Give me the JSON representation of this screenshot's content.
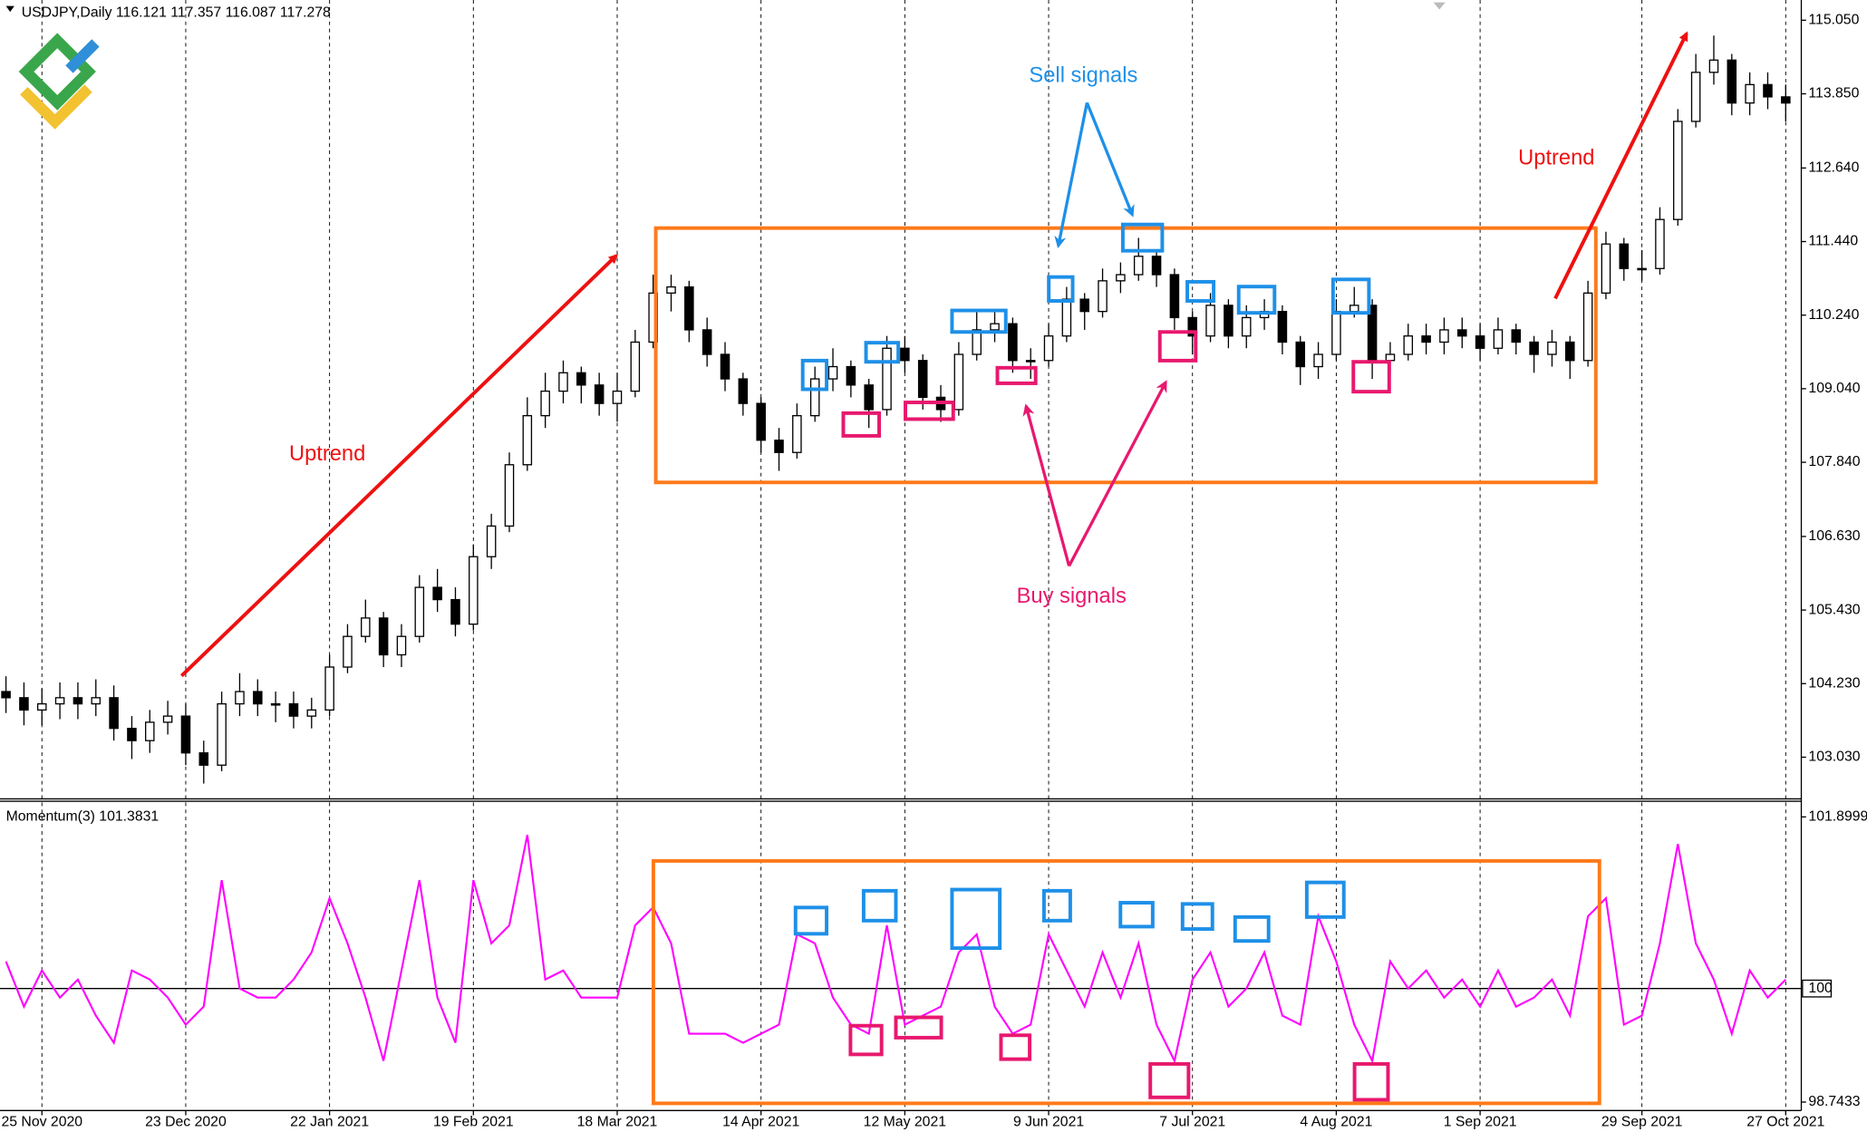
{
  "chart_data": [
    {
      "type": "candlestick",
      "title": "USDJPY,Daily  116.121 117.357 116.087 117.278",
      "annotations": [
        "Uptrend",
        "Sell signals",
        "Buy signals",
        "Uptrend"
      ],
      "open": [
        104.1,
        104.0,
        103.8,
        103.9,
        104.0,
        103.9,
        104.0,
        103.5,
        103.3,
        103.6,
        103.7,
        103.1,
        102.9,
        103.9,
        104.1,
        103.9,
        103.9,
        103.7,
        103.8,
        104.5,
        105.0,
        105.3,
        104.7,
        105.0,
        105.8,
        105.6,
        105.2,
        106.3,
        106.8,
        107.8,
        108.6,
        109.0,
        109.3,
        109.1,
        108.8,
        109.0,
        109.8,
        110.6,
        110.7,
        110.0,
        109.6,
        109.2,
        108.8,
        108.2,
        108.0,
        108.6,
        109.2,
        109.4,
        109.1,
        108.7,
        109.7,
        109.5,
        108.9,
        108.7,
        109.6,
        110.0,
        110.1,
        109.5,
        109.5,
        109.9,
        110.5,
        110.3,
        110.8,
        110.9,
        111.2,
        110.9,
        110.2,
        109.9,
        110.4,
        109.9,
        110.2,
        110.3,
        109.8,
        109.4,
        109.6,
        110.3,
        110.4,
        109.5,
        109.6,
        109.9,
        109.8,
        110.0,
        109.9,
        109.7,
        110.0,
        109.8,
        109.6,
        109.8,
        109.5,
        110.6,
        111.4,
        111.0,
        111.0,
        111.8,
        113.4,
        114.2,
        114.4,
        113.7,
        114.0,
        113.8
      ],
      "high": [
        104.35,
        104.25,
        104.15,
        104.25,
        104.25,
        104.3,
        104.2,
        103.7,
        103.8,
        103.95,
        103.9,
        103.3,
        104.1,
        104.4,
        104.3,
        104.1,
        104.1,
        104.0,
        104.7,
        105.2,
        105.6,
        105.4,
        105.2,
        106.0,
        106.1,
        105.8,
        106.5,
        107.0,
        108.0,
        108.9,
        109.3,
        109.5,
        109.4,
        109.3,
        109.3,
        110.0,
        110.9,
        110.9,
        110.8,
        110.2,
        109.8,
        109.3,
        108.9,
        108.4,
        108.8,
        109.4,
        109.7,
        109.5,
        109.2,
        109.9,
        109.9,
        109.6,
        109.1,
        109.8,
        110.3,
        110.3,
        110.2,
        109.7,
        110.1,
        110.7,
        110.6,
        111.0,
        111.1,
        111.5,
        111.3,
        111.0,
        110.3,
        110.6,
        110.5,
        110.4,
        110.5,
        110.4,
        109.9,
        109.8,
        110.5,
        110.7,
        110.5,
        109.8,
        110.1,
        110.1,
        110.2,
        110.2,
        110.1,
        110.2,
        110.1,
        109.9,
        110.0,
        109.9,
        110.8,
        111.6,
        111.5,
        111.3,
        112.0,
        113.6,
        114.5,
        114.8,
        114.5,
        114.2,
        114.2,
        114.0
      ],
      "low": [
        103.75,
        103.55,
        103.55,
        103.65,
        103.65,
        103.7,
        103.3,
        103.0,
        103.1,
        103.4,
        102.9,
        102.6,
        102.8,
        103.7,
        103.7,
        103.6,
        103.5,
        103.5,
        103.7,
        104.4,
        104.9,
        104.5,
        104.5,
        104.9,
        105.4,
        105.0,
        105.1,
        106.1,
        106.7,
        107.7,
        108.4,
        108.8,
        108.8,
        108.6,
        108.5,
        108.9,
        109.7,
        110.3,
        109.8,
        109.4,
        109.0,
        108.6,
        108.0,
        107.7,
        107.9,
        108.5,
        109.0,
        108.9,
        108.4,
        108.6,
        109.3,
        108.7,
        108.5,
        108.6,
        109.5,
        109.8,
        109.3,
        109.2,
        109.4,
        109.8,
        110.0,
        110.2,
        110.6,
        110.8,
        110.7,
        110.0,
        109.6,
        109.8,
        109.7,
        109.7,
        110.0,
        109.6,
        109.1,
        109.2,
        109.5,
        110.2,
        109.2,
        109.3,
        109.5,
        109.6,
        109.6,
        109.7,
        109.5,
        109.6,
        109.6,
        109.3,
        109.4,
        109.2,
        109.4,
        110.5,
        110.8,
        110.8,
        110.9,
        111.7,
        113.3,
        114.0,
        113.5,
        113.5,
        113.6,
        113.4
      ],
      "close": [
        104.0,
        103.8,
        103.9,
        104.0,
        103.9,
        104.0,
        103.5,
        103.3,
        103.6,
        103.7,
        103.1,
        102.9,
        103.9,
        104.1,
        103.9,
        103.9,
        103.7,
        103.8,
        104.5,
        105.0,
        105.3,
        104.7,
        105.0,
        105.8,
        105.6,
        105.2,
        106.3,
        106.8,
        107.8,
        108.6,
        109.0,
        109.3,
        109.1,
        108.8,
        109.0,
        109.8,
        110.6,
        110.7,
        110.0,
        109.6,
        109.2,
        108.8,
        108.2,
        108.0,
        108.6,
        109.2,
        109.4,
        109.1,
        108.7,
        109.7,
        109.5,
        108.9,
        108.7,
        109.6,
        110.0,
        110.1,
        109.5,
        109.5,
        109.9,
        110.5,
        110.3,
        110.8,
        110.9,
        111.2,
        110.9,
        110.2,
        109.9,
        110.4,
        109.9,
        110.2,
        110.3,
        109.8,
        109.4,
        109.6,
        110.3,
        110.4,
        109.5,
        109.6,
        109.9,
        109.8,
        110.0,
        109.9,
        109.7,
        110.0,
        109.8,
        109.6,
        109.8,
        109.5,
        110.6,
        111.4,
        111.0,
        111.0,
        111.8,
        113.4,
        114.2,
        114.4,
        113.7,
        114.0,
        113.8,
        113.7
      ],
      "ylim": [
        102.37,
        115.38
      ],
      "yticks": [
        {
          "value": 115.05,
          "label": "115.050"
        },
        {
          "value": 113.85,
          "label": "113.850"
        },
        {
          "value": 112.64,
          "label": "112.640"
        },
        {
          "value": 111.44,
          "label": "111.440"
        },
        {
          "value": 110.24,
          "label": "110.240"
        },
        {
          "value": 109.04,
          "label": "109.040"
        },
        {
          "value": 107.84,
          "label": "107.840"
        },
        {
          "value": 106.63,
          "label": "106.630"
        },
        {
          "value": 105.43,
          "label": "105.430"
        },
        {
          "value": 104.23,
          "label": "104.230"
        },
        {
          "value": 103.03,
          "label": "103.030"
        }
      ]
    },
    {
      "type": "line",
      "title": "Momentum(3) 101.3831",
      "color": "#ff00ff",
      "reference_line": 100,
      "categories": [
        null,
        null,
        "25 Nov 2020",
        null,
        null,
        null,
        null,
        null,
        null,
        null,
        "23 Dec 2020",
        null,
        null,
        null,
        null,
        null,
        null,
        null,
        "22 Jan 2021",
        null,
        null,
        null,
        null,
        null,
        null,
        null,
        "19 Feb 2021",
        null,
        null,
        null,
        null,
        null,
        null,
        null,
        "18 Mar 2021",
        null,
        null,
        null,
        null,
        null,
        null,
        null,
        "14 Apr 2021",
        null,
        null,
        null,
        null,
        null,
        null,
        null,
        "12 May 2021",
        null,
        null,
        null,
        null,
        null,
        null,
        null,
        "9 Jun 2021",
        null,
        null,
        null,
        null,
        null,
        null,
        null,
        "7 Jul 2021",
        null,
        null,
        null,
        null,
        null,
        null,
        null,
        "4 Aug 2021",
        null,
        null,
        null,
        null,
        null,
        null,
        null,
        "1 Sep 2021",
        null,
        null,
        null,
        null,
        null,
        null,
        null,
        null,
        "29 Sep 2021",
        null,
        null,
        null,
        null,
        null,
        null,
        null,
        "27 Oct 2021"
      ],
      "values": [
        100.3,
        99.8,
        100.2,
        99.9,
        100.1,
        99.7,
        99.4,
        100.2,
        100.1,
        99.9,
        99.6,
        99.8,
        101.2,
        100.0,
        99.9,
        99.9,
        100.1,
        100.4,
        101.0,
        100.5,
        99.9,
        99.2,
        100.2,
        101.2,
        99.9,
        99.4,
        101.2,
        100.5,
        100.7,
        101.7,
        100.1,
        100.2,
        99.9,
        99.9,
        99.9,
        100.7,
        100.9,
        100.5,
        99.5,
        99.5,
        99.5,
        99.4,
        99.5,
        99.6,
        100.6,
        100.5,
        99.9,
        99.6,
        99.5,
        100.7,
        99.6,
        99.7,
        99.8,
        100.4,
        100.6,
        99.8,
        99.5,
        99.6,
        100.6,
        100.2,
        99.8,
        100.4,
        99.9,
        100.5,
        99.6,
        99.2,
        100.1,
        100.4,
        99.8,
        100.0,
        100.4,
        99.7,
        99.6,
        100.8,
        100.3,
        99.6,
        99.2,
        100.3,
        100.0,
        100.2,
        99.9,
        100.1,
        99.8,
        100.2,
        99.8,
        99.9,
        100.1,
        99.7,
        100.8,
        101.0,
        99.6,
        99.7,
        100.5,
        101.6,
        100.5,
        100.1,
        99.5,
        100.2,
        99.9,
        100.1
      ],
      "ylim": [
        98.65,
        102.06
      ],
      "yticks": [
        101.8999,
        100,
        98.7433
      ]
    }
  ]
}
